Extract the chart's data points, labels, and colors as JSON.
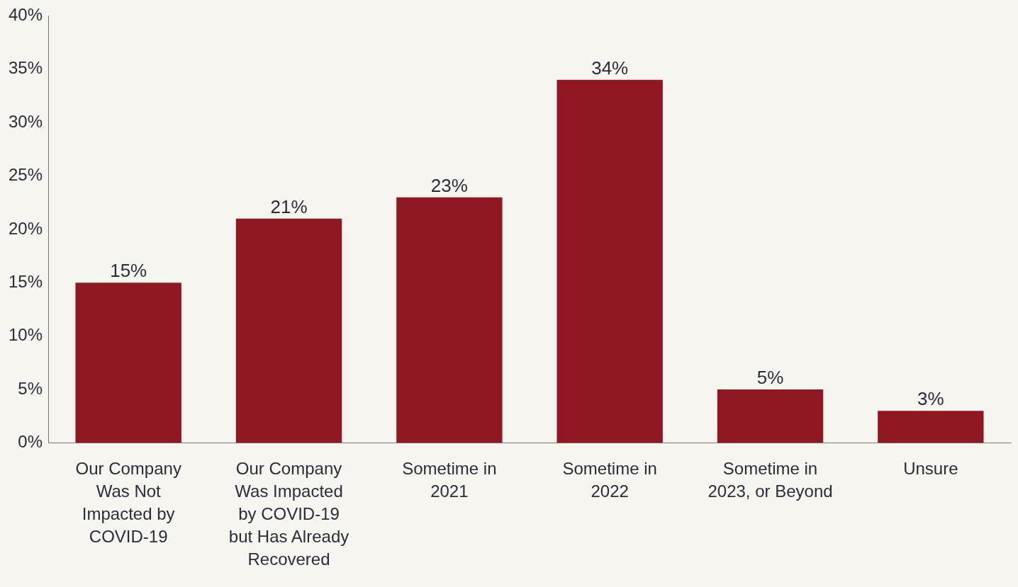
{
  "chart_data": {
    "type": "bar",
    "categories": [
      "Our Company Was Not Impacted by COVID-19",
      "Our Company Was Impacted by COVID-19 but Has Already Recovered",
      "Sometime in 2021",
      "Sometime in 2022",
      "Sometime in 2023, or Beyond",
      "Unsure"
    ],
    "values": [
      15,
      21,
      23,
      34,
      5,
      3
    ],
    "value_labels": [
      "15%",
      "21%",
      "23%",
      "34%",
      "5%",
      "3%"
    ],
    "color": "#8f1722",
    "ylim": [
      0,
      40
    ],
    "yticks": [
      {
        "value": 0,
        "label": "0%"
      },
      {
        "value": 5,
        "label": "5%"
      },
      {
        "value": 10,
        "label": "10%"
      },
      {
        "value": 15,
        "label": "15%"
      },
      {
        "value": 20,
        "label": "20%"
      },
      {
        "value": 25,
        "label": "25%"
      },
      {
        "value": 30,
        "label": "30%"
      },
      {
        "value": 35,
        "label": "35%"
      },
      {
        "value": 40,
        "label": "40%"
      }
    ]
  }
}
